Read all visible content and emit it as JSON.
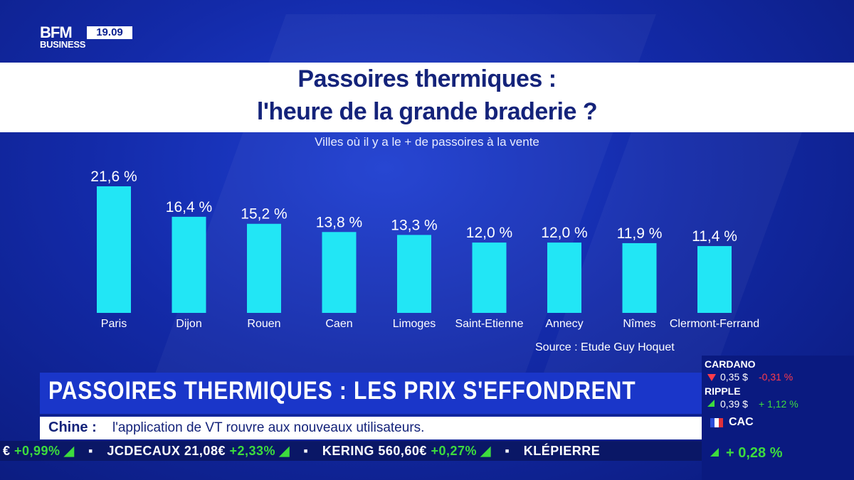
{
  "broadcast": {
    "logo_main": "BFM",
    "logo_sub": "BUSINESS",
    "clock": "19.09"
  },
  "chart_data": {
    "type": "bar",
    "title_line1": "Passoires thermiques :",
    "title_line2": "l'heure de la grande braderie ?",
    "subtitle": "Villes où il y a le + de passoires à la vente",
    "categories": [
      "Paris",
      "Dijon",
      "Rouen",
      "Caen",
      "Limoges",
      "Saint-Etienne",
      "Annecy",
      "Nîmes",
      "Clermont-Ferrand"
    ],
    "values": [
      21.6,
      16.4,
      15.2,
      13.8,
      13.3,
      12.0,
      12.0,
      11.9,
      11.4
    ],
    "value_labels": [
      "21,6 %",
      "16,4 %",
      "15,2 %",
      "13,8 %",
      "13,3 %",
      "12,0 %",
      "12,0 %",
      "11,9 %",
      "11,4 %"
    ],
    "source": "Source : Etude Guy Hoquet",
    "ylim": [
      0,
      21.6
    ],
    "grid": false,
    "legend": "none",
    "bar_color": "#22e6f5"
  },
  "headline": "PASSOIRES THERMIQUES : LES PRIX S'EFFONDRENT",
  "news": {
    "topic": "Chine :",
    "text": "l'application de VT rouvre aux nouveaux utilisateurs."
  },
  "ticker": {
    "items": [
      {
        "name": "",
        "price": "",
        "change": "+0,99%"
      },
      {
        "name": "JCDECAUX",
        "price": "21,08€",
        "change": "+2,33%"
      },
      {
        "name": "KERING",
        "price": "560,60€",
        "change": "+0,27%"
      },
      {
        "name": "KLÉPIERRE",
        "price": "",
        "change": ""
      }
    ]
  },
  "crypto": [
    {
      "name": "CARDANO",
      "price": "0,35 $",
      "change": "-0,31 %",
      "direction": "down"
    },
    {
      "name": "RIPPLE",
      "price": "0,39 $",
      "change": "+ 1,12 %",
      "direction": "up"
    }
  ],
  "index": {
    "name": "CAC",
    "change": "+ 0,28 %"
  },
  "colors": {
    "background": "#132aa8",
    "accent_cyan": "#22e6f5",
    "title_navy": "#14237a",
    "up_green": "#3ddc3d",
    "down_red": "#ff3b4a"
  }
}
